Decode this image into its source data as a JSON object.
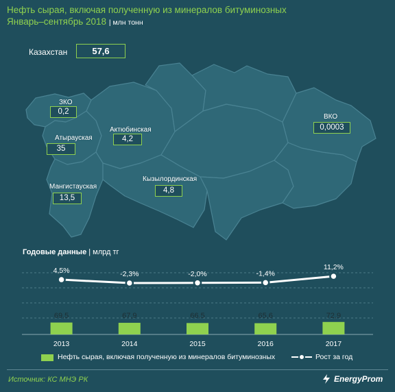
{
  "header": {
    "title_line1": "Нефть сырая, включая полученную из минералов битуминозных",
    "title_line2": "Январь–сентябрь 2018",
    "unit": "| млн тонн"
  },
  "kazakhstan": {
    "label": "Казахстан",
    "value": "57,6"
  },
  "regions": [
    {
      "name": "ЗКО",
      "value": "0,2"
    },
    {
      "name": "Атырауская",
      "value": "35"
    },
    {
      "name": "Актюбинская",
      "value": "4,2"
    },
    {
      "name": "Мангистауская",
      "value": "13,5"
    },
    {
      "name": "Кызылординская",
      "value": "4,8"
    },
    {
      "name": "ВКО",
      "value": "0,0003"
    }
  ],
  "annual": {
    "title": "Годовые данные",
    "unit": "| млрд тг"
  },
  "legend": {
    "bars": "Нефть сырая, включая полученную из минералов битуминозных",
    "line": "Рост за год"
  },
  "footer": {
    "source": "Источник: КС МНЭ РК",
    "brand": "EnergyProm"
  },
  "colors": {
    "background": "#1f4e5c",
    "map": "#2f6877",
    "accent": "#8fd14f",
    "line": "#ffffff"
  },
  "chart_data": {
    "type": "bar",
    "categories": [
      "2013",
      "2014",
      "2015",
      "2016",
      "2017"
    ],
    "series": [
      {
        "name": "Нефть сырая, включая полученную из минералов битуминозных",
        "type": "bar",
        "values": [
          69.5,
          67.9,
          66.5,
          65.6,
          72.9
        ],
        "labels": [
          "69,5",
          "67,9",
          "66,5",
          "65,6",
          "72,9"
        ]
      },
      {
        "name": "Рост за год",
        "type": "line",
        "values": [
          4.5,
          -2.3,
          -2.0,
          -1.4,
          11.2
        ],
        "labels": [
          "4,5%",
          "-2,3%",
          "-2,0%",
          "-1,4%",
          "11,2%"
        ]
      }
    ],
    "grid": true,
    "legend_position": "bottom"
  }
}
